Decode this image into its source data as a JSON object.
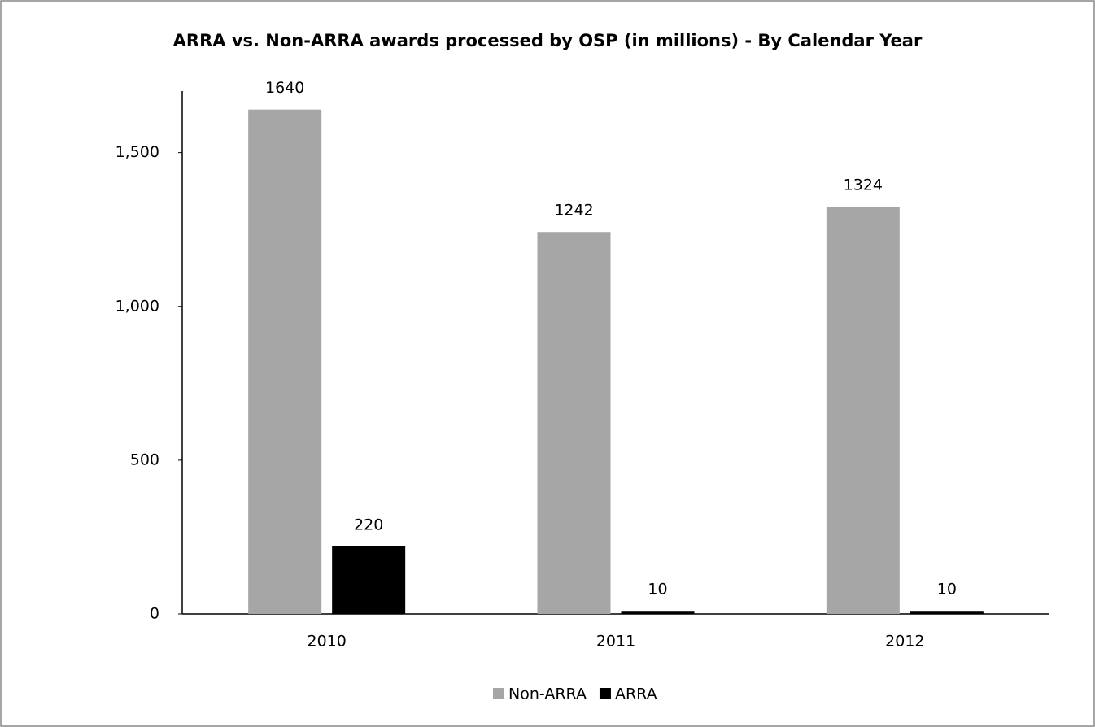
{
  "chart_data": {
    "type": "bar",
    "title": "ARRA vs. Non-ARRA awards processed by OSP (in millions) - By Calendar Year",
    "categories": [
      "2010",
      "2011",
      "2012"
    ],
    "series": [
      {
        "name": "Non-ARRA",
        "color": "#a6a6a6",
        "values": [
          1640,
          1242,
          1324
        ]
      },
      {
        "name": "ARRA",
        "color": "#000000",
        "values": [
          220,
          10,
          10
        ]
      }
    ],
    "ylim": [
      0,
      1700
    ],
    "yticks": [
      0,
      500,
      {
        "value": 1000,
        "label": "1,000"
      },
      {
        "value": 1500,
        "label": "1,500"
      }
    ],
    "legend": "bottom",
    "grid": false
  }
}
